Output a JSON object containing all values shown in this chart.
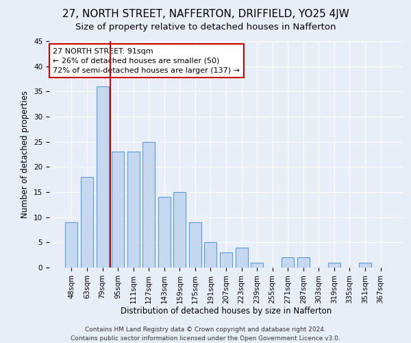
{
  "title": "27, NORTH STREET, NAFFERTON, DRIFFIELD, YO25 4JW",
  "subtitle": "Size of property relative to detached houses in Nafferton",
  "xlabel": "Distribution of detached houses by size in Nafferton",
  "ylabel": "Number of detached properties",
  "categories": [
    "48sqm",
    "63sqm",
    "79sqm",
    "95sqm",
    "111sqm",
    "127sqm",
    "143sqm",
    "159sqm",
    "175sqm",
    "191sqm",
    "207sqm",
    "223sqm",
    "239sqm",
    "255sqm",
    "271sqm",
    "287sqm",
    "303sqm",
    "319sqm",
    "335sqm",
    "351sqm",
    "367sqm"
  ],
  "values": [
    9,
    18,
    36,
    23,
    23,
    25,
    14,
    15,
    9,
    5,
    3,
    4,
    1,
    0,
    2,
    2,
    0,
    1,
    0,
    1,
    0
  ],
  "bar_color": "#c5d8f0",
  "bar_edge_color": "#5b9bd5",
  "annotation_line1": "27 NORTH STREET: 91sqm",
  "annotation_line2": "← 26% of detached houses are smaller (50)",
  "annotation_line3": "72% of semi-detached houses are larger (137) →",
  "annotation_box_color": "#ffffff",
  "annotation_box_edge_color": "#cc0000",
  "vline_color": "#cc0000",
  "vline_x": 2.5,
  "ylim": [
    0,
    45
  ],
  "yticks": [
    0,
    5,
    10,
    15,
    20,
    25,
    30,
    35,
    40,
    45
  ],
  "background_color": "#e8eef8",
  "footer_line1": "Contains HM Land Registry data © Crown copyright and database right 2024.",
  "footer_line2": "Contains public sector information licensed under the Open Government Licence v3.0.",
  "title_fontsize": 11,
  "subtitle_fontsize": 9.5,
  "axis_label_fontsize": 8.5,
  "tick_fontsize": 7.5,
  "annotation_fontsize": 8,
  "footer_fontsize": 6.5
}
